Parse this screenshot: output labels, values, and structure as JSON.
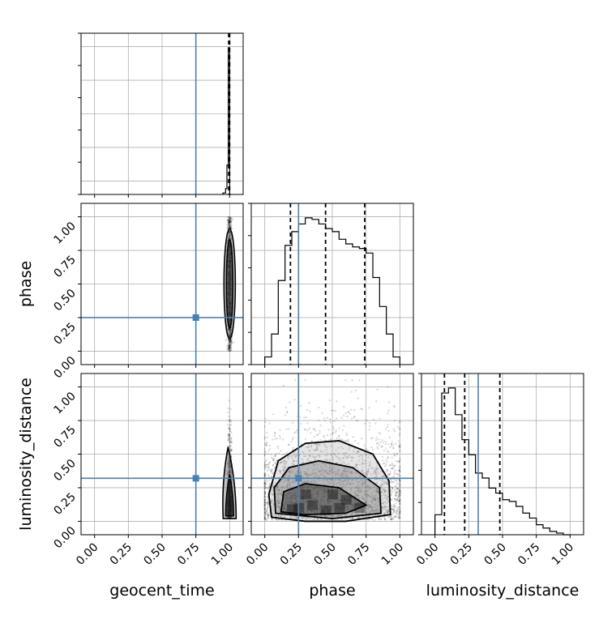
{
  "chart_data": {
    "type": "corner",
    "parameters": [
      "geocent_time",
      "phase",
      "luminosity_distance"
    ],
    "truths": {
      "geocent_time": 0.75,
      "phase": 0.25,
      "luminosity_distance": 0.32
    },
    "quantiles": {
      "geocent_time": [
        0.993,
        0.997,
        1.0
      ],
      "phase": [
        0.19,
        0.45,
        0.74
      ],
      "luminosity_distance": [
        0.07,
        0.22,
        0.48
      ]
    },
    "tick_labels": [
      "0.00",
      "0.25",
      "0.50",
      "0.75",
      "1.00"
    ],
    "tick_values": [
      0,
      0.25,
      0.5,
      0.75,
      1.0
    ],
    "axis_range": [
      -0.1,
      1.1
    ],
    "grid": true,
    "colors": {
      "truth": "#4682b4",
      "hist": "#000000",
      "scatter": "#000000",
      "contour_fill": "#333333"
    },
    "histograms": {
      "geocent_time": {
        "edges": [
          0.95,
          0.97,
          0.98,
          0.99,
          1.0,
          1.01
        ],
        "counts": [
          1,
          4,
          20,
          100,
          0
        ]
      },
      "phase": {
        "edges": [
          0.0,
          0.05,
          0.1,
          0.15,
          0.2,
          0.25,
          0.3,
          0.35,
          0.4,
          0.45,
          0.5,
          0.55,
          0.6,
          0.65,
          0.7,
          0.75,
          0.8,
          0.85,
          0.9,
          0.95,
          1.0
        ],
        "counts": [
          5,
          20,
          55,
          78,
          87,
          92,
          96,
          95,
          92,
          89,
          87,
          82,
          79,
          77,
          76,
          73,
          57,
          38,
          20,
          5
        ]
      },
      "luminosity_distance": {
        "edges": [
          0.0,
          0.05,
          0.1,
          0.15,
          0.2,
          0.25,
          0.3,
          0.35,
          0.4,
          0.45,
          0.5,
          0.55,
          0.6,
          0.65,
          0.7,
          0.75,
          0.8,
          0.85,
          0.9,
          0.95,
          1.0
        ],
        "counts": [
          12,
          85,
          88,
          72,
          57,
          48,
          37,
          34,
          28,
          25,
          21,
          20,
          17,
          13,
          10,
          6,
          4,
          2,
          1,
          0
        ]
      }
    }
  }
}
